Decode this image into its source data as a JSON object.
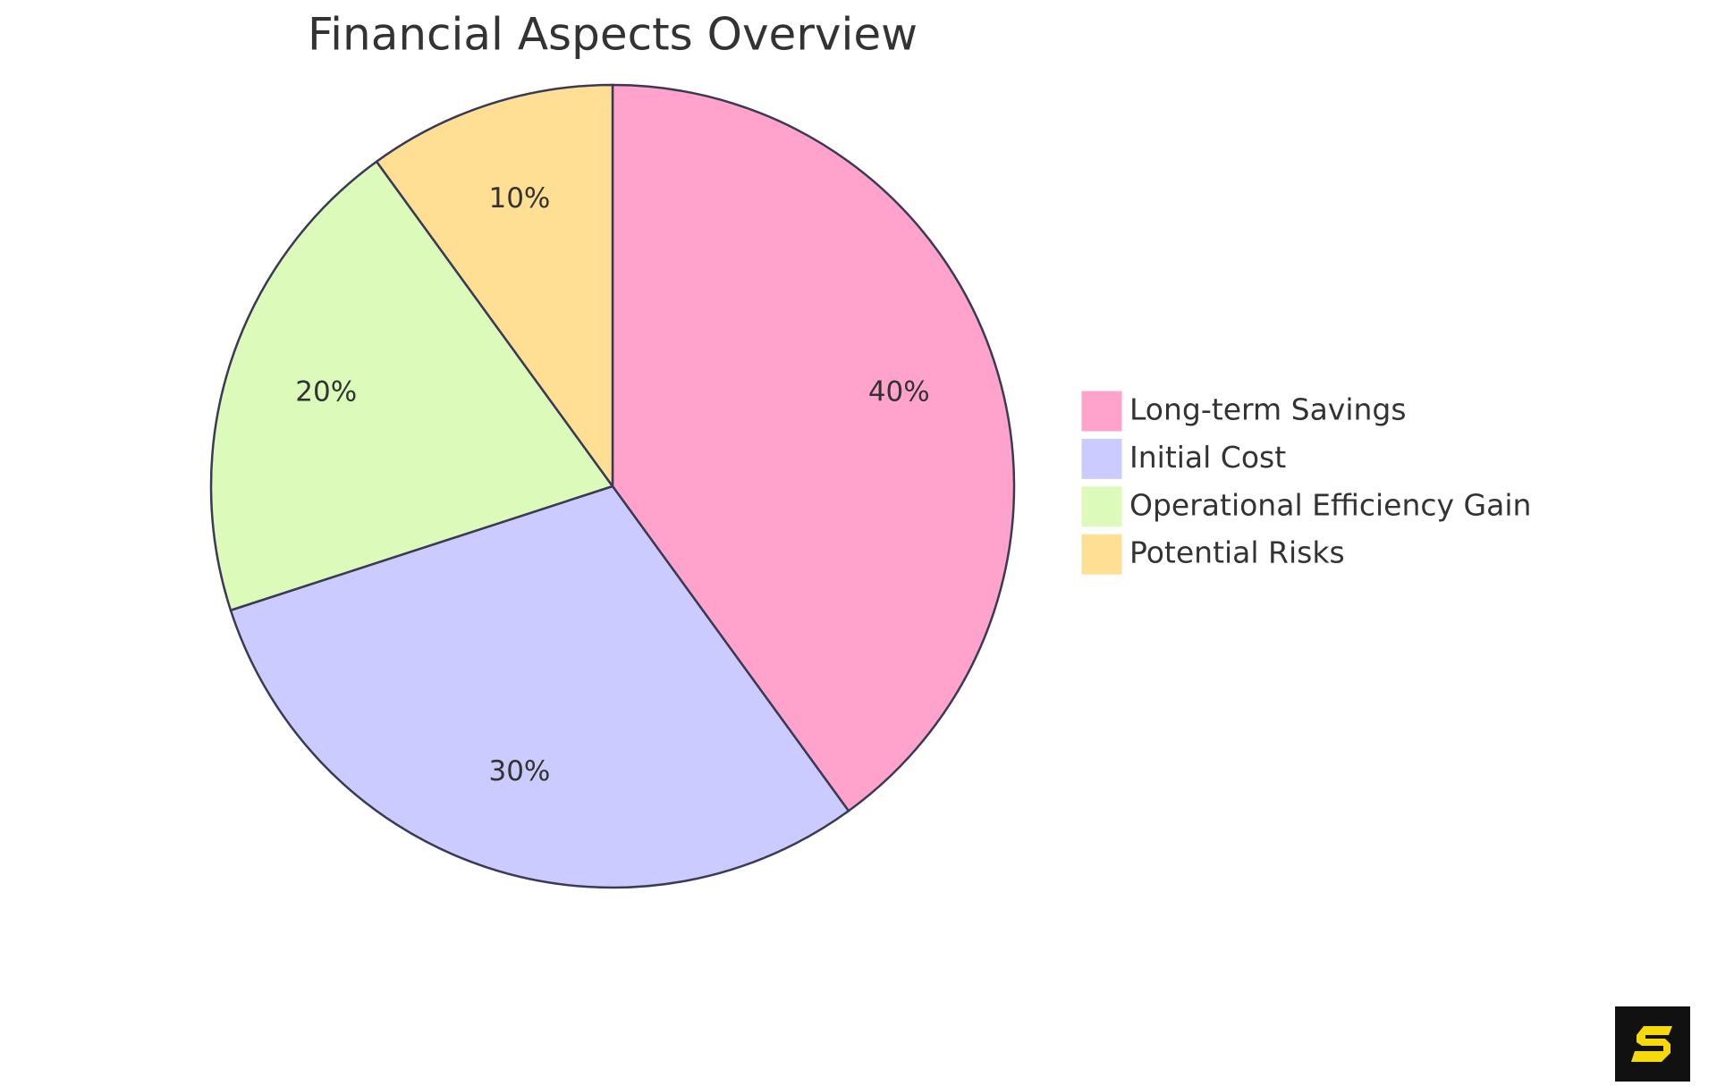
{
  "chart_data": {
    "type": "pie",
    "title": "Financial Aspects Overview",
    "categories": [
      "Long-term Savings",
      "Initial Cost",
      "Operational Efficiency Gain",
      "Potential Risks"
    ],
    "values": [
      40,
      30,
      20,
      10
    ],
    "value_labels": [
      "40%",
      "30%",
      "20%",
      "10%"
    ],
    "colors": [
      "#ffa3cc",
      "#cbcbff",
      "#dcfbbb",
      "#fedf94"
    ],
    "legend": "right"
  }
}
